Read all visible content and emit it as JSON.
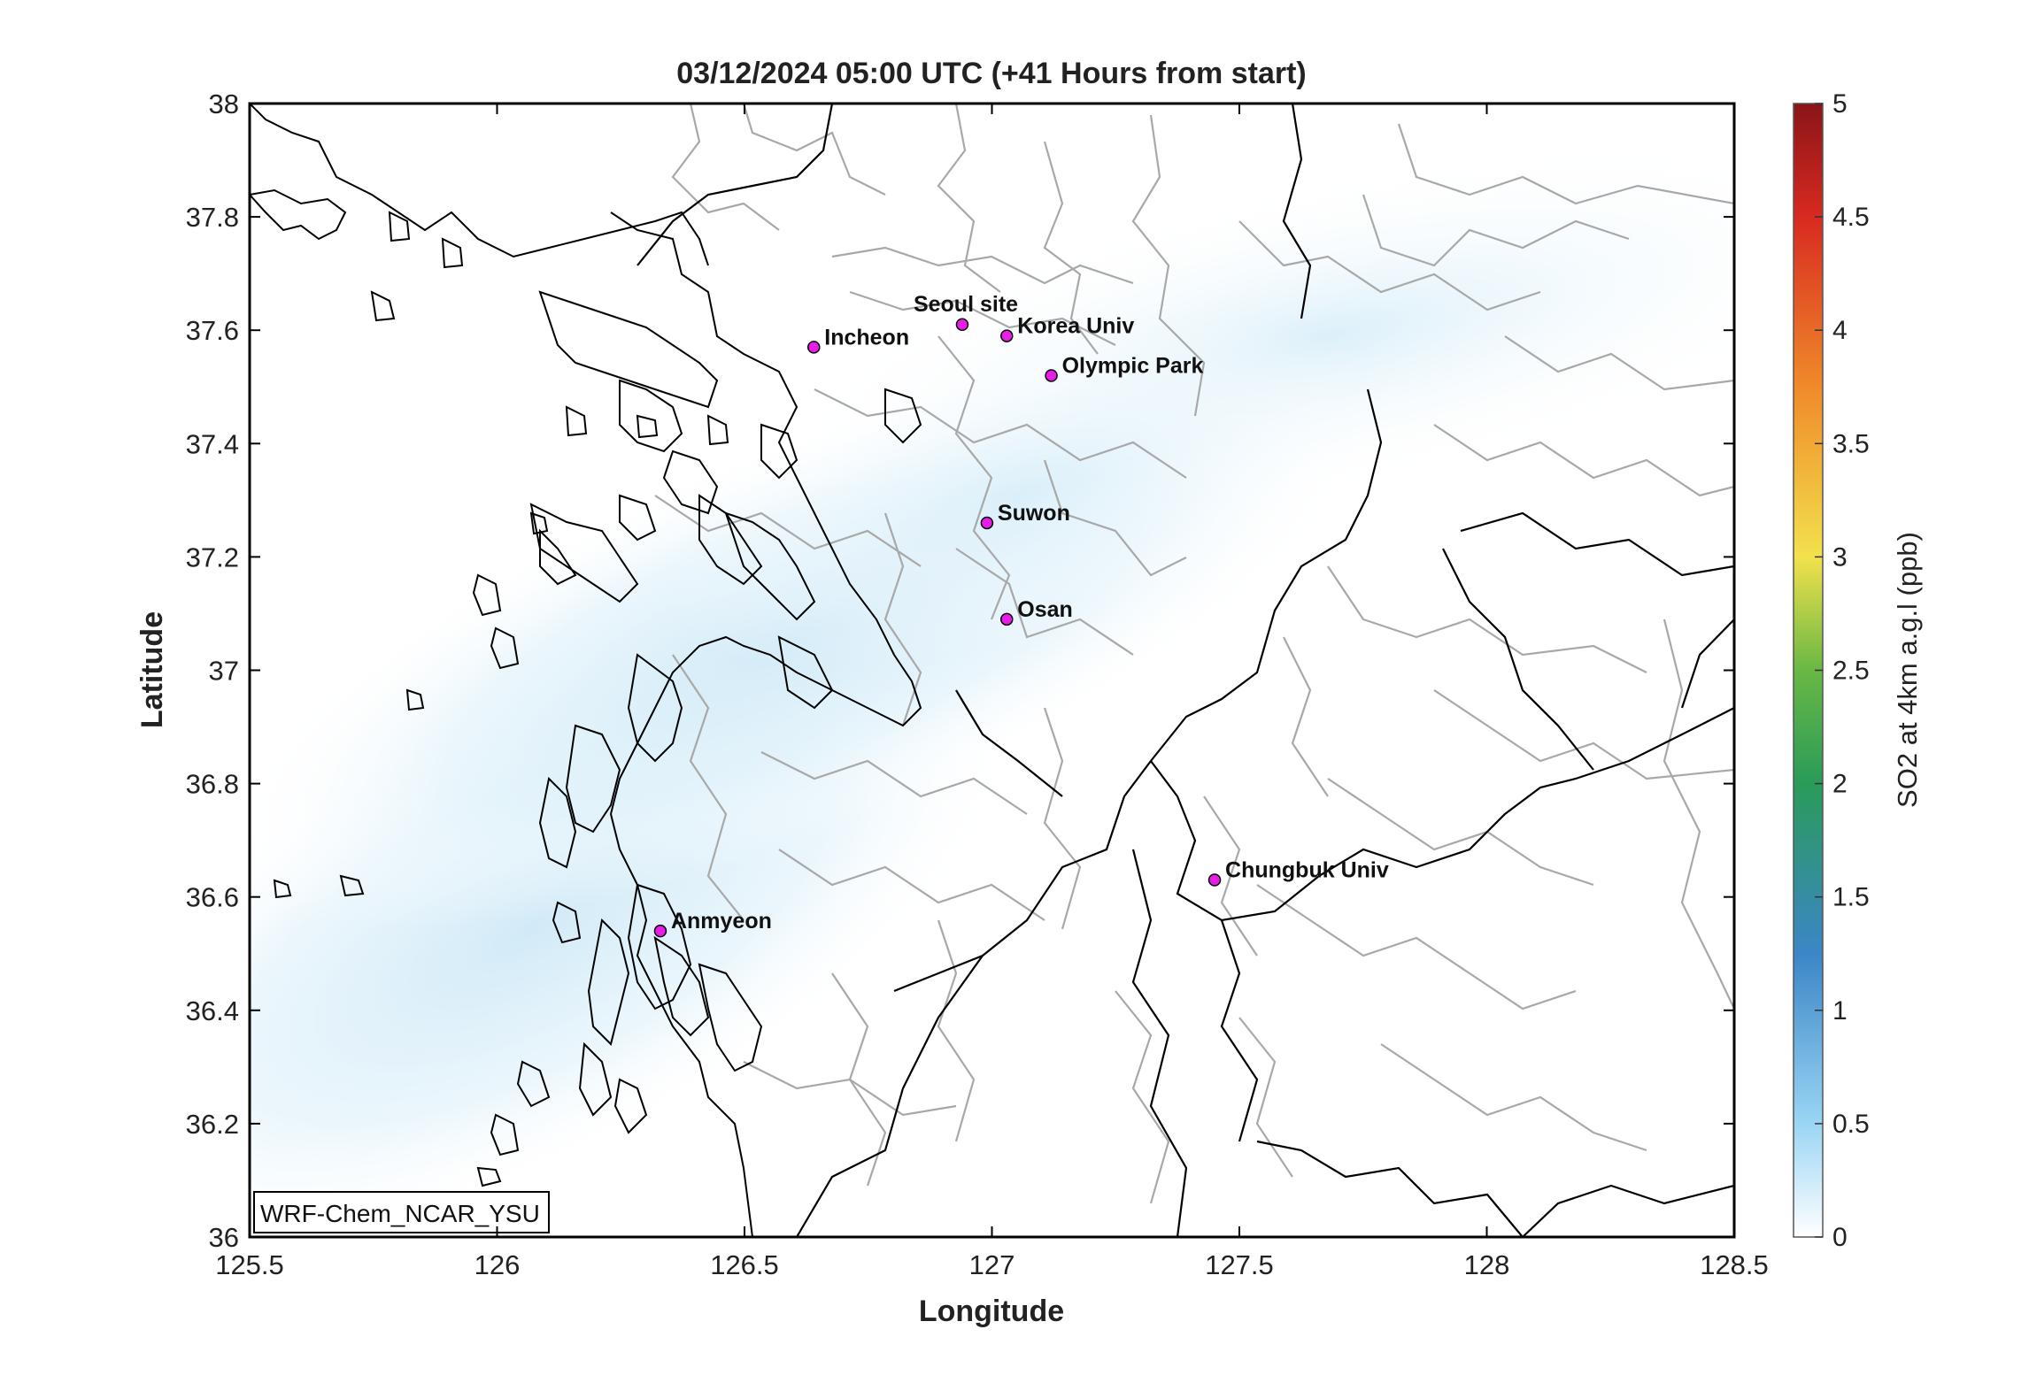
{
  "title": "03/12/2024 05:00 UTC (+41 Hours from start)",
  "x_axis": {
    "label": "Longitude",
    "min": 125.5,
    "max": 128.5,
    "ticks": [
      "125.5",
      "126",
      "126.5",
      "127",
      "127.5",
      "128",
      "128.5"
    ]
  },
  "y_axis": {
    "label": "Latitude",
    "min": 36,
    "max": 38,
    "ticks": [
      "36",
      "36.2",
      "36.4",
      "36.6",
      "36.8",
      "37",
      "37.2",
      "37.4",
      "37.6",
      "37.8",
      "38"
    ]
  },
  "colorbar": {
    "label": "SO2 at 4km a.g.l (ppb)",
    "min": 0,
    "max": 5,
    "ticks": [
      "0",
      "0.5",
      "1",
      "1.5",
      "2",
      "2.5",
      "3",
      "3.5",
      "4",
      "4.5",
      "5"
    ],
    "colors": [
      "#ffffff",
      "#8fd3f5",
      "#3a87c8",
      "#2c9a4a",
      "#f0e54a",
      "#f08a2a",
      "#d7261e",
      "#8e1418"
    ]
  },
  "model_label": "WRF-Chem_NCAR_YSU",
  "marker_color": "#e61ee6",
  "sites": [
    {
      "name": "Seoul site",
      "lon": 126.94,
      "lat": 37.61
    },
    {
      "name": "Korea Univ",
      "lon": 127.03,
      "lat": 37.59
    },
    {
      "name": "Incheon",
      "lon": 126.64,
      "lat": 37.57
    },
    {
      "name": "Olympic Park",
      "lon": 127.12,
      "lat": 37.52
    },
    {
      "name": "Suwon",
      "lon": 126.99,
      "lat": 37.26
    },
    {
      "name": "Osan",
      "lon": 127.03,
      "lat": 37.09
    },
    {
      "name": "Chungbuk Univ",
      "lon": 127.45,
      "lat": 36.63
    },
    {
      "name": "Anmyeon",
      "lon": 126.33,
      "lat": 36.54
    }
  ]
}
